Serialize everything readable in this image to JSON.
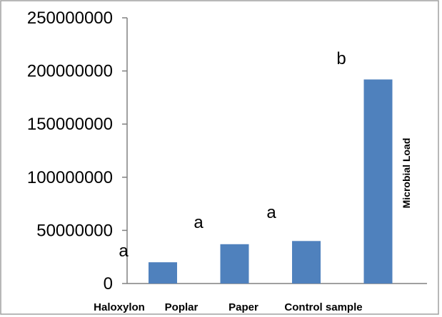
{
  "chart_data": {
    "type": "bar",
    "categories": [
      "Haloxylon",
      "Poplar",
      "Paper",
      "Control sample"
    ],
    "values": [
      20000000,
      37000000,
      40000000,
      192000000
    ],
    "yticks": [
      "0",
      "50000000",
      "100000000",
      "150000000",
      "200000000",
      "250000000"
    ],
    "ylim": [
      0,
      250000000
    ],
    "series": [
      {
        "name": "Microbial Load",
        "values": [
          20000000,
          37000000,
          40000000,
          192000000
        ]
      }
    ],
    "annotations": [
      {
        "text": "a",
        "category": "Haloxylon"
      },
      {
        "text": "a",
        "category": "Poplar"
      },
      {
        "text": "a",
        "category": "Paper"
      },
      {
        "text": "b",
        "category": "Control sample"
      }
    ],
    "bar_color": "#4F81BD",
    "grid": false
  }
}
